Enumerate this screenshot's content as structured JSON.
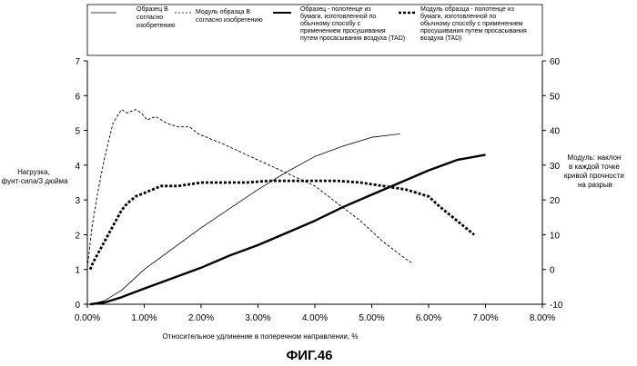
{
  "figure_caption": "ФИГ.46",
  "chart_data": {
    "type": "line",
    "xlabel": "Относительное удлинение в поперечном направлении, %",
    "ylabel_left": [
      "Нагрузка,",
      "фунт-сила/3 дюйма"
    ],
    "ylabel_right": [
      "Модуль: наклон",
      "в каждой точке",
      "кривой прочности",
      "на разрыв"
    ],
    "xlim": [
      0,
      8
    ],
    "ylim_left": [
      0,
      7
    ],
    "ylim_right": [
      -10,
      60
    ],
    "x_ticks": [
      "0.00%",
      "1.00%",
      "2.00%",
      "3.00%",
      "4.00%",
      "5.00%",
      "6.00%",
      "7.00%",
      "8.00%"
    ],
    "y_left_ticks": [
      "0",
      "1",
      "2",
      "3",
      "4",
      "5",
      "6",
      "7"
    ],
    "y_right_ticks": [
      "-10",
      "0",
      "10",
      "20",
      "30",
      "40",
      "50",
      "60"
    ],
    "grid": false,
    "legend_position": "top",
    "series": [
      {
        "name": [
          "Образец В",
          "согласно",
          "изобретению"
        ],
        "axis": "left",
        "style": "thin",
        "x": [
          0.05,
          0.3,
          0.6,
          1.0,
          1.5,
          2.0,
          2.5,
          3.0,
          3.5,
          4.0,
          4.5,
          5.0,
          5.5
        ],
        "y": [
          0,
          0.1,
          0.4,
          1.0,
          1.6,
          2.2,
          2.75,
          3.3,
          3.8,
          4.25,
          4.55,
          4.8,
          4.9
        ]
      },
      {
        "name": [
          "Модуль образца В",
          "согласно изобретению"
        ],
        "axis": "right",
        "style": "thin-dashed",
        "x": [
          0.0,
          0.08,
          0.18,
          0.3,
          0.45,
          0.6,
          0.7,
          0.85,
          0.95,
          1.05,
          1.2,
          1.4,
          1.6,
          1.8,
          1.95,
          2.1,
          2.4,
          2.8,
          3.2,
          3.6,
          4.0,
          4.4,
          4.8,
          5.2,
          5.6,
          5.7
        ],
        "y": [
          0.5,
          12,
          22,
          32,
          42,
          46,
          45,
          46,
          45,
          43,
          44,
          42,
          41,
          41,
          39,
          38,
          36,
          33,
          30,
          27,
          24,
          19,
          14,
          8,
          3,
          2
        ]
      },
      {
        "name": [
          "Образец - полотенце из",
          "бумаги, изготовленной по",
          "обычному способу с",
          "применением просушивания",
          "путем просасывания воздуха (TAD)"
        ],
        "axis": "left",
        "style": "thick",
        "x": [
          0.05,
          0.3,
          0.6,
          1.0,
          1.5,
          2.0,
          2.5,
          3.0,
          3.5,
          4.0,
          4.5,
          5.0,
          5.5,
          6.0,
          6.5,
          7.0
        ],
        "y": [
          0,
          0.05,
          0.2,
          0.45,
          0.75,
          1.05,
          1.4,
          1.7,
          2.05,
          2.4,
          2.8,
          3.15,
          3.5,
          3.85,
          4.15,
          4.3
        ]
      },
      {
        "name": [
          "Модуль образца - полотенце из",
          "бумаги, изготовленной по",
          "обычному способу с применением",
          "просушивания путем просасывания",
          "воздуха (TAD)"
        ],
        "axis": "right",
        "style": "thick-dashed",
        "x": [
          0.05,
          0.1,
          0.2,
          0.3,
          0.4,
          0.5,
          0.6,
          0.7,
          0.85,
          1.0,
          1.3,
          1.6,
          2.0,
          2.4,
          2.8,
          3.2,
          3.6,
          4.0,
          4.4,
          4.8,
          5.2,
          5.6,
          6.0,
          6.2,
          6.5,
          6.8
        ],
        "y": [
          0,
          2,
          5,
          8,
          11,
          14,
          17,
          19,
          21,
          22,
          24,
          24,
          25,
          25,
          25,
          25.5,
          25.5,
          25.5,
          25.5,
          25,
          24,
          23,
          21,
          18,
          14,
          10
        ]
      }
    ]
  }
}
